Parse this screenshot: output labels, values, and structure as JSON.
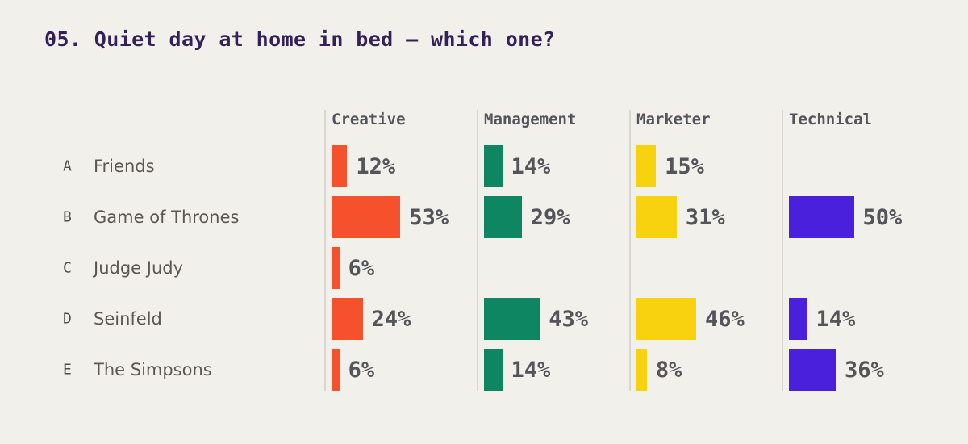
{
  "title": "05. Quiet day at home in bed — which one?",
  "chart_data": {
    "type": "bar",
    "orientation": "horizontal",
    "title": "05. Quiet day at home in bed — which one?",
    "unit": "%",
    "value_range": [
      0,
      100
    ],
    "grid": false,
    "legend_position": "column-headers",
    "categories": [
      {
        "key": "A",
        "label": "Friends"
      },
      {
        "key": "B",
        "label": "Game of Thrones"
      },
      {
        "key": "C",
        "label": "Judge Judy"
      },
      {
        "key": "D",
        "label": "Seinfeld"
      },
      {
        "key": "E",
        "label": "The Simpsons"
      }
    ],
    "series": [
      {
        "name": "Creative",
        "color": "#F5512D",
        "values": [
          12,
          53,
          6,
          24,
          6
        ]
      },
      {
        "name": "Management",
        "color": "#0F8662",
        "values": [
          14,
          29,
          null,
          43,
          14
        ]
      },
      {
        "name": "Marketer",
        "color": "#F8D20E",
        "values": [
          15,
          31,
          null,
          46,
          8
        ]
      },
      {
        "name": "Technical",
        "color": "#4B20DC",
        "values": [
          null,
          50,
          null,
          14,
          36
        ]
      }
    ]
  },
  "colors": {
    "background": "#F2F0EA",
    "title_text": "#34215A",
    "header_text": "#54555A",
    "value_text": "#54555A",
    "answer_letter_text": "#504E49",
    "answer_name_text": "#5B5852",
    "divider": "#DAD7D0"
  }
}
